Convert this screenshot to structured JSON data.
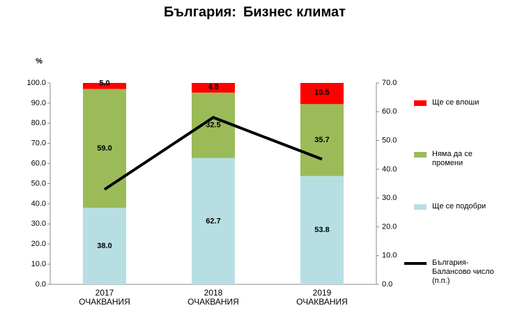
{
  "chart_data": {
    "type": "bar",
    "stacked": true,
    "title": [
      "България:",
      "Бизнес климат"
    ],
    "title_colors": [
      "#1f8a1f",
      "#1f3a8a"
    ],
    "ylabel": "%",
    "categories": [
      "2017\nОЧАКВАНИЯ",
      "2018\nОЧАКВАНИЯ",
      "2019\nОЧАКВАНИЯ"
    ],
    "series": [
      {
        "name": "Ще се подобри",
        "color": "#b7dfe3",
        "values": [
          38.0,
          62.7,
          53.8
        ],
        "value_labels": [
          "38.0",
          "62.7",
          "53.8"
        ]
      },
      {
        "name": "Няма да се\nпромени",
        "color": "#9bbb59",
        "values": [
          59.0,
          32.5,
          35.7
        ],
        "value_labels": [
          "59.0",
          "32.5",
          "35.7"
        ]
      },
      {
        "name": "Ще се влоши",
        "color": "#ff0000",
        "values": [
          5.0,
          4.8,
          10.5
        ],
        "value_labels": [
          "5.0",
          "4.8",
          "10.5"
        ]
      },
      {
        "name": "България-\nБалансово число\n(п.п.)",
        "type": "line",
        "axis": "y2",
        "color": "#000000",
        "values": [
          33,
          58,
          43.5
        ]
      }
    ],
    "ylim": [
      0,
      100
    ],
    "yticks": [
      {
        "value": 0,
        "label": "0.0"
      },
      {
        "value": 10,
        "label": "10.0"
      },
      {
        "value": 20,
        "label": "20.0"
      },
      {
        "value": 30,
        "label": "30.0"
      },
      {
        "value": 40,
        "label": "40.0"
      },
      {
        "value": 50,
        "label": "50.0"
      },
      {
        "value": 60,
        "label": "60.0"
      },
      {
        "value": 70,
        "label": "70.0"
      },
      {
        "value": 80,
        "label": "80.0"
      },
      {
        "value": 90,
        "label": "90.0"
      },
      {
        "value": 100,
        "label": "100.0"
      }
    ],
    "y2lim": [
      0,
      70
    ],
    "y2ticks": [
      {
        "value": 0,
        "label": "0.0"
      },
      {
        "value": 10,
        "label": "10.0"
      },
      {
        "value": 20,
        "label": "20.0"
      },
      {
        "value": 30,
        "label": "30.0"
      },
      {
        "value": 40,
        "label": "40.0"
      },
      {
        "value": 50,
        "label": "50.0"
      },
      {
        "value": 60,
        "label": "60.0"
      },
      {
        "value": 70,
        "label": "70.0"
      }
    ],
    "legend": "right",
    "grid": false
  }
}
